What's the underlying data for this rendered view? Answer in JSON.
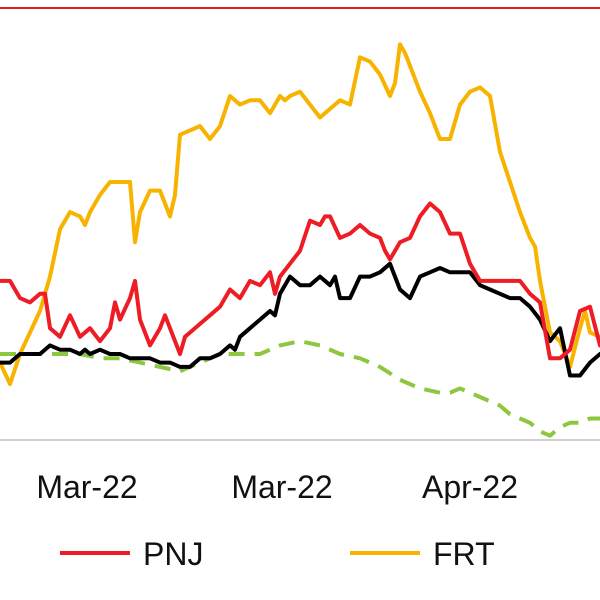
{
  "chart_data": {
    "type": "line",
    "x_tick_labels": [
      "Mar-22",
      "Mar-22",
      "Apr-22"
    ],
    "colors": {
      "top_border": "#e32119",
      "axis": "#d0d0d0",
      "PNJ": "#ee1c24",
      "FRT": "#f7b300",
      "black": "#000000",
      "green_dashed": "#8dc63f"
    },
    "series": [
      {
        "name": "PNJ",
        "style": "solid",
        "points": [
          [
            0,
            -3
          ],
          [
            2,
            -3
          ],
          [
            4,
            -7
          ],
          [
            6,
            -8
          ],
          [
            8,
            -6
          ],
          [
            9,
            -6
          ],
          [
            10,
            -14
          ],
          [
            12,
            -16
          ],
          [
            14,
            -11
          ],
          [
            16,
            -16
          ],
          [
            18,
            -14
          ],
          [
            20,
            -17
          ],
          [
            22,
            -14
          ],
          [
            23,
            -8
          ],
          [
            24,
            -12
          ],
          [
            26,
            -7
          ],
          [
            27,
            -3
          ],
          [
            28,
            -12
          ],
          [
            30,
            -18
          ],
          [
            32,
            -14
          ],
          [
            33,
            -11
          ],
          [
            34,
            -14
          ],
          [
            36,
            -20
          ],
          [
            37,
            -16
          ],
          [
            38,
            -15
          ],
          [
            40,
            -13
          ],
          [
            42,
            -11
          ],
          [
            44,
            -9
          ],
          [
            46,
            -5
          ],
          [
            48,
            -7
          ],
          [
            50,
            -3
          ],
          [
            52,
            -4
          ],
          [
            54,
            -1
          ],
          [
            55,
            -6
          ],
          [
            56,
            -2
          ],
          [
            58,
            1
          ],
          [
            60,
            4
          ],
          [
            62,
            11
          ],
          [
            64,
            10
          ],
          [
            65,
            12
          ],
          [
            66,
            12
          ],
          [
            68,
            7
          ],
          [
            70,
            8
          ],
          [
            72,
            10
          ],
          [
            74,
            8
          ],
          [
            76,
            7
          ],
          [
            77,
            4
          ],
          [
            78,
            2
          ],
          [
            80,
            6
          ],
          [
            82,
            7
          ],
          [
            84,
            12
          ],
          [
            86,
            15
          ],
          [
            88,
            13
          ],
          [
            90,
            8
          ],
          [
            92,
            8
          ],
          [
            94,
            1
          ],
          [
            96,
            -3
          ],
          [
            98,
            -3
          ],
          [
            100,
            -3
          ],
          [
            102,
            -3
          ],
          [
            104,
            -3
          ],
          [
            106,
            -6
          ],
          [
            108,
            -8
          ],
          [
            110,
            -21
          ],
          [
            112,
            -21
          ],
          [
            114,
            -19
          ],
          [
            116,
            -10
          ],
          [
            118,
            -9
          ],
          [
            120,
            -18
          ]
        ]
      },
      {
        "name": "FRT",
        "style": "solid",
        "points": [
          [
            0,
            -22
          ],
          [
            2,
            -27
          ],
          [
            4,
            -20
          ],
          [
            6,
            -15
          ],
          [
            8,
            -10
          ],
          [
            10,
            -2
          ],
          [
            12,
            9
          ],
          [
            14,
            13
          ],
          [
            16,
            12
          ],
          [
            17,
            10
          ],
          [
            18,
            13
          ],
          [
            20,
            17
          ],
          [
            22,
            20
          ],
          [
            24,
            20
          ],
          [
            26,
            20
          ],
          [
            27,
            6
          ],
          [
            28,
            13
          ],
          [
            30,
            18
          ],
          [
            32,
            18
          ],
          [
            34,
            12
          ],
          [
            35,
            17
          ],
          [
            36,
            31
          ],
          [
            38,
            32
          ],
          [
            40,
            33
          ],
          [
            42,
            30
          ],
          [
            44,
            33
          ],
          [
            46,
            40
          ],
          [
            48,
            38
          ],
          [
            50,
            39
          ],
          [
            52,
            39
          ],
          [
            54,
            36
          ],
          [
            56,
            40
          ],
          [
            57,
            39
          ],
          [
            58,
            40
          ],
          [
            60,
            41
          ],
          [
            62,
            38
          ],
          [
            64,
            35
          ],
          [
            66,
            37
          ],
          [
            68,
            39
          ],
          [
            70,
            38
          ],
          [
            72,
            49
          ],
          [
            74,
            48
          ],
          [
            76,
            45
          ],
          [
            78,
            40
          ],
          [
            79,
            43
          ],
          [
            80,
            52
          ],
          [
            81,
            50
          ],
          [
            82,
            47
          ],
          [
            84,
            41
          ],
          [
            86,
            36
          ],
          [
            88,
            30
          ],
          [
            90,
            30
          ],
          [
            92,
            38
          ],
          [
            94,
            41
          ],
          [
            96,
            42
          ],
          [
            98,
            40
          ],
          [
            100,
            27
          ],
          [
            102,
            20
          ],
          [
            104,
            13
          ],
          [
            106,
            7
          ],
          [
            107,
            5
          ],
          [
            108,
            -3
          ],
          [
            110,
            -15
          ],
          [
            112,
            -17
          ],
          [
            114,
            -23
          ],
          [
            116,
            -14
          ],
          [
            117,
            -10
          ],
          [
            118,
            -15
          ],
          [
            120,
            -16
          ]
        ]
      },
      {
        "name": "",
        "color_key": "black",
        "style": "solid",
        "points": [
          [
            0,
            -22
          ],
          [
            2,
            -22
          ],
          [
            4,
            -20
          ],
          [
            6,
            -20
          ],
          [
            8,
            -20
          ],
          [
            10,
            -18
          ],
          [
            12,
            -19
          ],
          [
            14,
            -19
          ],
          [
            16,
            -20
          ],
          [
            17,
            -19
          ],
          [
            18,
            -20
          ],
          [
            20,
            -19
          ],
          [
            22,
            -20
          ],
          [
            24,
            -20
          ],
          [
            26,
            -21
          ],
          [
            28,
            -21
          ],
          [
            30,
            -21
          ],
          [
            32,
            -22
          ],
          [
            34,
            -22
          ],
          [
            36,
            -23
          ],
          [
            38,
            -23
          ],
          [
            40,
            -21
          ],
          [
            42,
            -21
          ],
          [
            44,
            -20
          ],
          [
            46,
            -18
          ],
          [
            47,
            -19
          ],
          [
            48,
            -16
          ],
          [
            50,
            -14
          ],
          [
            52,
            -12
          ],
          [
            54,
            -10
          ],
          [
            55,
            -11
          ],
          [
            56,
            -6
          ],
          [
            58,
            -2
          ],
          [
            60,
            -4
          ],
          [
            62,
            -4
          ],
          [
            64,
            -2
          ],
          [
            66,
            -4
          ],
          [
            67,
            -2
          ],
          [
            68,
            -7
          ],
          [
            70,
            -7
          ],
          [
            72,
            -2
          ],
          [
            74,
            -2
          ],
          [
            76,
            -1
          ],
          [
            78,
            1
          ],
          [
            80,
            -5
          ],
          [
            82,
            -7
          ],
          [
            84,
            -2
          ],
          [
            86,
            -1
          ],
          [
            88,
            0
          ],
          [
            90,
            -1
          ],
          [
            92,
            -1
          ],
          [
            94,
            -1
          ],
          [
            96,
            -4
          ],
          [
            98,
            -5
          ],
          [
            100,
            -6
          ],
          [
            102,
            -7
          ],
          [
            104,
            -7
          ],
          [
            106,
            -9
          ],
          [
            108,
            -12
          ],
          [
            110,
            -17
          ],
          [
            112,
            -14
          ],
          [
            114,
            -25
          ],
          [
            116,
            -25
          ],
          [
            118,
            -22
          ],
          [
            120,
            -20
          ]
        ]
      },
      {
        "name": "",
        "color_key": "green_dashed",
        "style": "dashed",
        "points": [
          [
            0,
            -20
          ],
          [
            4,
            -20
          ],
          [
            8,
            -20
          ],
          [
            12,
            -20
          ],
          [
            16,
            -20
          ],
          [
            20,
            -21
          ],
          [
            24,
            -21
          ],
          [
            28,
            -22
          ],
          [
            32,
            -23
          ],
          [
            36,
            -24
          ],
          [
            40,
            -22
          ],
          [
            44,
            -20
          ],
          [
            48,
            -20
          ],
          [
            52,
            -20
          ],
          [
            56,
            -18
          ],
          [
            60,
            -17
          ],
          [
            64,
            -18
          ],
          [
            68,
            -20
          ],
          [
            72,
            -21
          ],
          [
            76,
            -23
          ],
          [
            80,
            -26
          ],
          [
            84,
            -28
          ],
          [
            88,
            -29
          ],
          [
            90,
            -29
          ],
          [
            92,
            -28
          ],
          [
            94,
            -29
          ],
          [
            96,
            -30
          ],
          [
            98,
            -31
          ],
          [
            100,
            -32
          ],
          [
            102,
            -34
          ],
          [
            104,
            -35
          ],
          [
            106,
            -36
          ],
          [
            108,
            -38
          ],
          [
            110,
            -39
          ],
          [
            112,
            -37
          ],
          [
            114,
            -36
          ],
          [
            116,
            -36
          ],
          [
            118,
            -35
          ],
          [
            120,
            -35
          ]
        ]
      }
    ],
    "legend": [
      {
        "label": "PNJ",
        "color_key": "PNJ"
      },
      {
        "label": "FRT",
        "color_key": "FRT"
      }
    ],
    "x_domain": [
      0,
      120
    ],
    "y_domain": [
      -40,
      60
    ],
    "legend_position": "bottom",
    "grid": false
  }
}
